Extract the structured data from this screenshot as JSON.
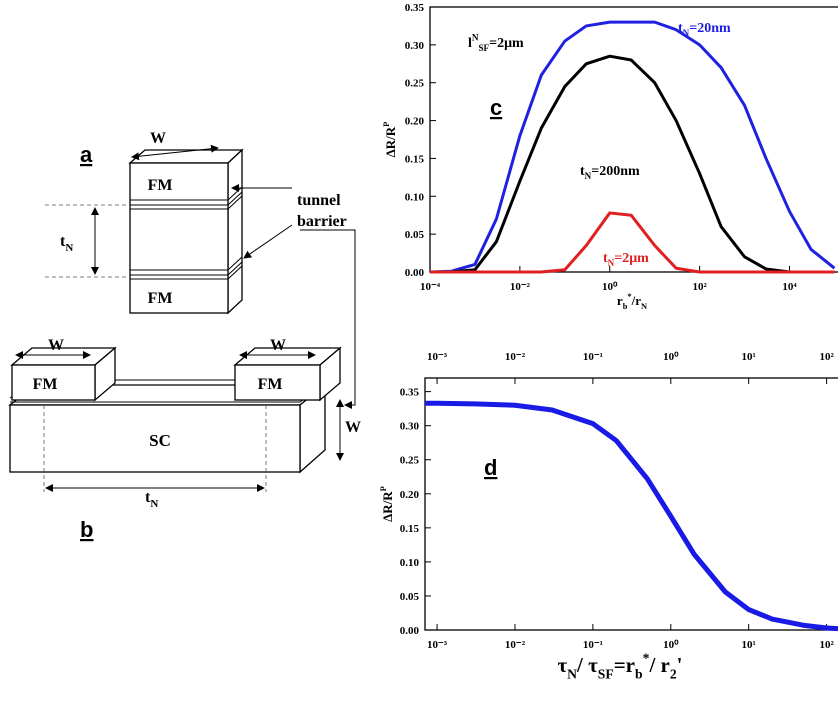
{
  "diagram": {
    "label_a": "a",
    "label_b": "b",
    "top_width": "W",
    "top_fm_upper": "FM",
    "top_fm_lower": "FM",
    "t_n_vertical": [
      {
        "text": "t"
      },
      {
        "text": "N",
        "pos": "sub"
      }
    ],
    "tunnel": "tunnel",
    "barrier": "barrier",
    "left_width": "W",
    "right_width": "W",
    "side_width": "W",
    "fm_left": "FM",
    "fm_right": "FM",
    "sc": "SC",
    "t_n_horizontal": [
      {
        "text": "t"
      },
      {
        "text": "N",
        "pos": "sub"
      }
    ]
  },
  "chart_data": [
    {
      "type": "line",
      "panel": "c",
      "xscale": "log",
      "xlim": [
        0.0001,
        120000
      ],
      "ylim": [
        0,
        0.35
      ],
      "xticks": [
        {
          "value": 0.0001,
          "label": "10⁻⁴"
        },
        {
          "value": 0.01,
          "label": "10⁻²"
        },
        {
          "value": 1,
          "label": "10⁰"
        },
        {
          "value": 100,
          "label": "10²"
        },
        {
          "value": 10000,
          "label": "10⁴"
        }
      ],
      "yticks": [
        {
          "value": 0,
          "label": "0.00"
        },
        {
          "value": 0.05,
          "label": "0.05"
        },
        {
          "value": 0.1,
          "label": "0.10"
        },
        {
          "value": 0.15,
          "label": "0.15"
        },
        {
          "value": 0.2,
          "label": "0.20"
        },
        {
          "value": 0.25,
          "label": "0.25"
        },
        {
          "value": 0.3,
          "label": "0.30"
        },
        {
          "value": 0.35,
          "label": "0.35"
        }
      ],
      "ylabel": [
        {
          "text": "ΔR/R"
        },
        {
          "text": "P",
          "pos": "sup"
        }
      ],
      "xlabel": [
        {
          "text": "r"
        },
        {
          "text": "b",
          "pos": "sub"
        },
        {
          "text": "*",
          "pos": "sup"
        },
        {
          "text": "/r"
        },
        {
          "text": "N",
          "pos": "sub"
        }
      ],
      "annotations": [
        [
          {
            "text": "l"
          },
          {
            "text": "N",
            "pos": "sup"
          },
          {
            "text": "SF",
            "pos": "sub"
          },
          {
            "text": "=2μm"
          }
        ]
      ],
      "x": [
        0.0001,
        0.0003,
        0.001,
        0.003,
        0.01,
        0.03,
        0.1,
        0.3,
        1,
        3,
        10,
        30,
        100,
        300,
        1000,
        3000,
        10000,
        30000,
        100000
      ],
      "series": [
        {
          "name": [
            {
              "text": "t"
            },
            {
              "text": "N",
              "pos": "sub"
            },
            {
              "text": "=20nm"
            }
          ],
          "color": "#2020e0",
          "values": [
            0,
            0.001,
            0.01,
            0.07,
            0.18,
            0.26,
            0.305,
            0.325,
            0.33,
            0.33,
            0.33,
            0.32,
            0.3,
            0.27,
            0.22,
            0.15,
            0.08,
            0.03,
            0.005
          ]
        },
        {
          "name": [
            {
              "text": "t"
            },
            {
              "text": "N",
              "pos": "sub"
            },
            {
              "text": "=200nm"
            }
          ],
          "color": "#000000",
          "values": [
            0,
            0,
            0.003,
            0.04,
            0.12,
            0.19,
            0.245,
            0.275,
            0.285,
            0.28,
            0.25,
            0.2,
            0.13,
            0.06,
            0.02,
            0.004,
            0,
            0,
            0
          ]
        },
        {
          "name": [
            {
              "text": "t"
            },
            {
              "text": "N",
              "pos": "sub"
            },
            {
              "text": "=2μm"
            }
          ],
          "color": "#e02020",
          "values": [
            0,
            0,
            0,
            0,
            0,
            0,
            0.003,
            0.035,
            0.078,
            0.075,
            0.035,
            0.005,
            0,
            0,
            0,
            0,
            0,
            0,
            0
          ]
        }
      ]
    },
    {
      "type": "line",
      "panel": "d",
      "xscale": "log",
      "xlim": [
        0.0007,
        140
      ],
      "ylim": [
        0,
        0.37
      ],
      "xticks": [
        {
          "value": 0.001,
          "label": "10⁻³"
        },
        {
          "value": 0.01,
          "label": "10⁻²"
        },
        {
          "value": 0.1,
          "label": "10⁻¹"
        },
        {
          "value": 1,
          "label": "10⁰"
        },
        {
          "value": 10,
          "label": "10¹"
        },
        {
          "value": 100,
          "label": "10²"
        }
      ],
      "x2ticks": [
        {
          "value": 0.001,
          "label": "10⁻³"
        },
        {
          "value": 0.01,
          "label": "10⁻²"
        },
        {
          "value": 0.1,
          "label": "10⁻¹"
        },
        {
          "value": 1,
          "label": "10⁰"
        },
        {
          "value": 10,
          "label": "10¹"
        },
        {
          "value": 100,
          "label": "10²"
        }
      ],
      "yticks": [
        {
          "value": 0,
          "label": "0.00"
        },
        {
          "value": 0.05,
          "label": "0.05"
        },
        {
          "value": 0.1,
          "label": "0.10"
        },
        {
          "value": 0.15,
          "label": "0.15"
        },
        {
          "value": 0.2,
          "label": "0.20"
        },
        {
          "value": 0.25,
          "label": "0.25"
        },
        {
          "value": 0.3,
          "label": "0.30"
        },
        {
          "value": 0.35,
          "label": "0.35"
        }
      ],
      "ylabel": [
        {
          "text": "ΔR/R"
        },
        {
          "text": "P",
          "pos": "sup"
        }
      ],
      "xlabel": [
        {
          "text": "τ"
        },
        {
          "text": "N",
          "pos": "sub"
        },
        {
          "text": "/ τ"
        },
        {
          "text": "SF",
          "pos": "sub"
        },
        {
          "text": "=r"
        },
        {
          "text": "b",
          "pos": "sub"
        },
        {
          "text": "*",
          "pos": "sup"
        },
        {
          "text": "/ r"
        },
        {
          "text": "2",
          "pos": "sub"
        },
        {
          "text": "'"
        }
      ],
      "x": [
        0.0007,
        0.001,
        0.003,
        0.01,
        0.03,
        0.1,
        0.2,
        0.5,
        1,
        2,
        5,
        10,
        20,
        50,
        100,
        140
      ],
      "series": [
        {
          "color": "#1a1ae6",
          "values": [
            0.333,
            0.333,
            0.332,
            0.33,
            0.323,
            0.303,
            0.278,
            0.222,
            0.167,
            0.111,
            0.056,
            0.03,
            0.016,
            0.007,
            0.003,
            0.002
          ]
        }
      ]
    }
  ]
}
